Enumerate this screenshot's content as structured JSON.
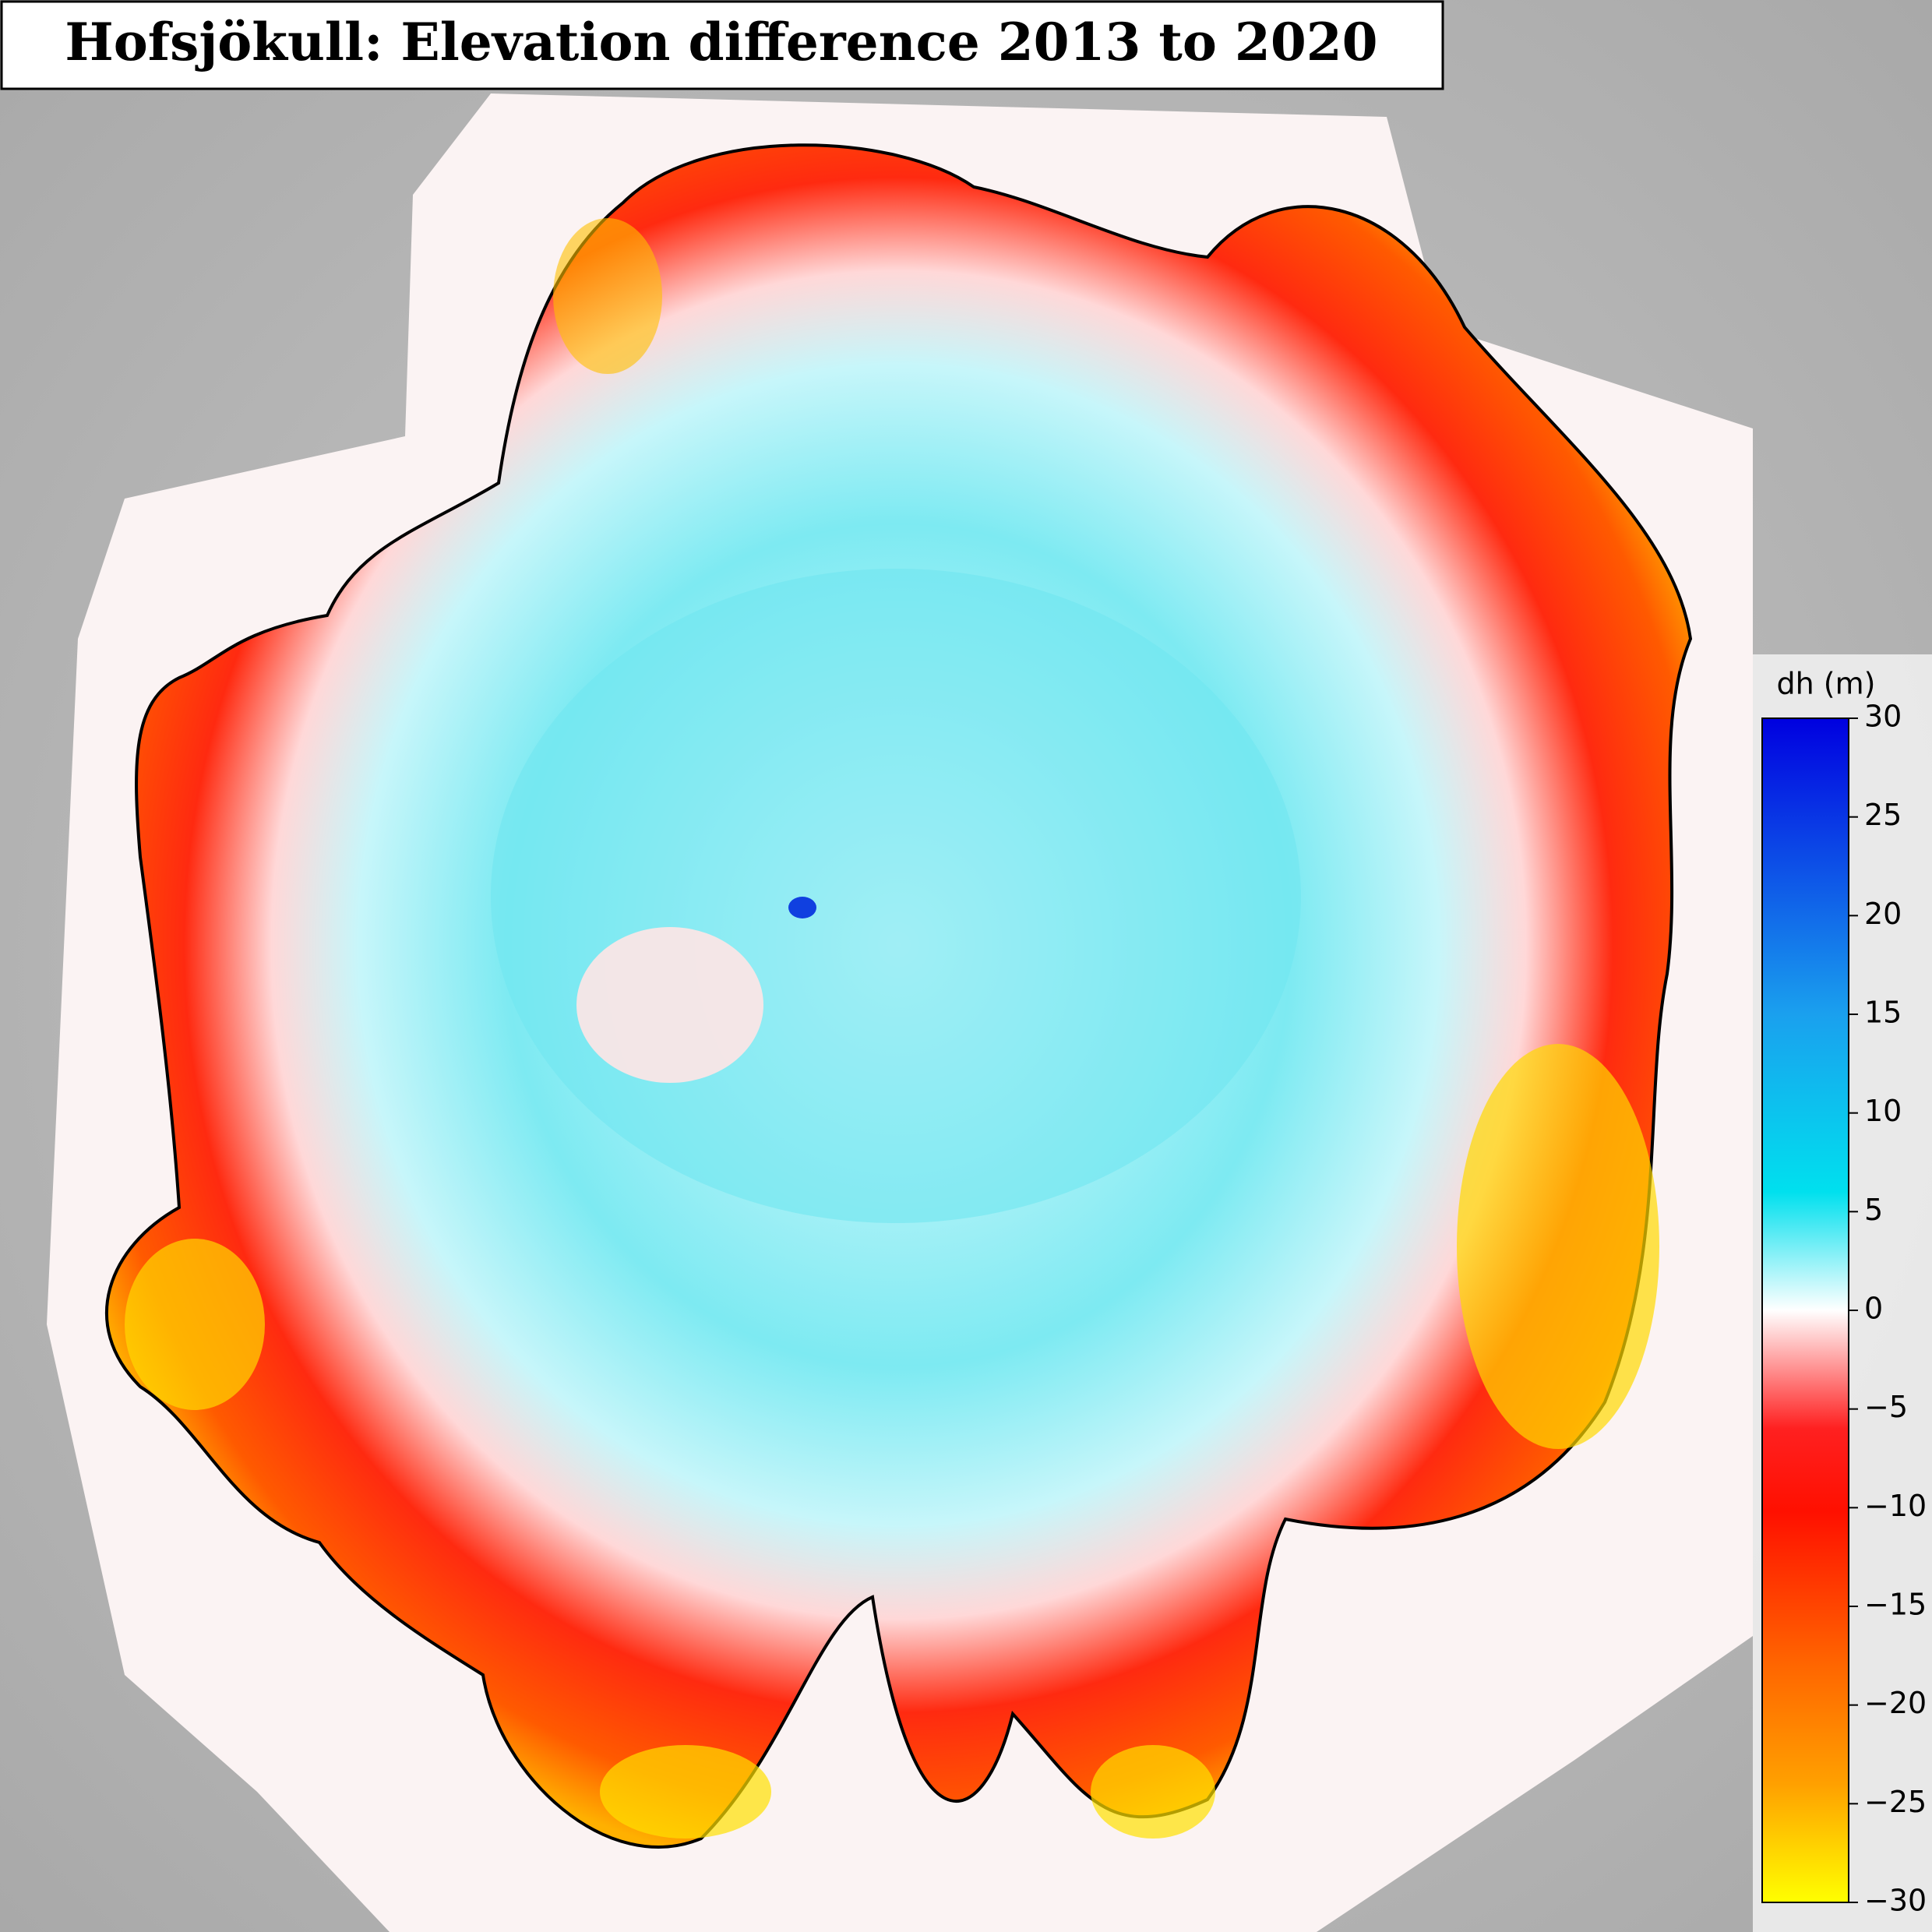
{
  "title": "Hofsjökull: Elevation difference 2013 to 2020",
  "colorbar": {
    "label": "dh (m)",
    "lim": [
      -30,
      30
    ],
    "ticks": [
      30,
      25,
      20,
      15,
      10,
      5,
      0,
      {
        "value": -5,
        "label": "−5"
      },
      {
        "value": -10,
        "label": "−10"
      },
      {
        "value": -15,
        "label": "−15"
      },
      {
        "value": -20,
        "label": "−20"
      },
      {
        "value": -25,
        "label": "−25"
      },
      {
        "value": -30,
        "label": "−30"
      }
    ]
  }
}
